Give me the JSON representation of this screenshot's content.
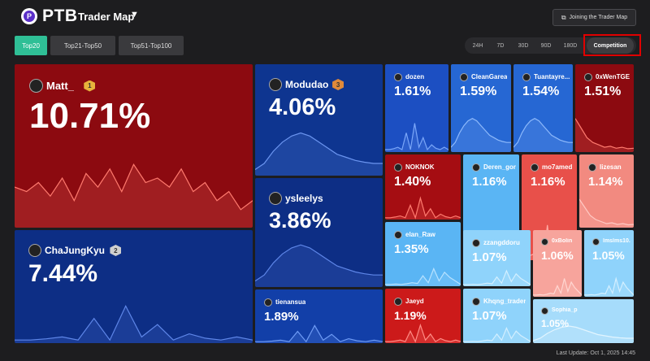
{
  "header": {
    "brand": "PTB",
    "title": "Trader Map",
    "join_label": "Joining the Trader Map"
  },
  "tabs": [
    {
      "label": "Top20",
      "active": true
    },
    {
      "label": "Top21-Top50",
      "active": false
    },
    {
      "label": "Top51-Top100",
      "active": false
    }
  ],
  "periods": [
    {
      "label": "24H",
      "active": false
    },
    {
      "label": "7D",
      "active": false
    },
    {
      "label": "30D",
      "active": false
    },
    {
      "label": "90D",
      "active": false
    },
    {
      "label": "180D",
      "active": false
    },
    {
      "label": "Competition",
      "active": true
    }
  ],
  "traders": [
    {
      "name": "Matt_",
      "pct": "10.71%",
      "rank": "1",
      "color": "#8c0a10",
      "line": "#ff7a6e"
    },
    {
      "name": "ChaJungKyu",
      "pct": "7.44%",
      "rank": "2",
      "color": "#0d2e85",
      "line": "#5e86e8"
    },
    {
      "name": "Modudao",
      "pct": "4.06%",
      "rank": "3",
      "color": "#0e3590",
      "line": "#6b95f0"
    },
    {
      "name": "ysleelys",
      "pct": "3.86%",
      "rank": "",
      "color": "#0d2e85",
      "line": "#5e86e8"
    },
    {
      "name": "tienansua",
      "pct": "1.89%",
      "rank": "",
      "color": "#123fa8",
      "line": "#6e9bf5"
    },
    {
      "name": "dozen",
      "pct": "1.61%",
      "rank": "",
      "color": "#1c4fc2",
      "line": "#7aa6f8"
    },
    {
      "name": "CleanGarea",
      "pct": "1.59%",
      "rank": "",
      "color": "#2667d3",
      "line": "#8db9fb"
    },
    {
      "name": "Tuantayre...",
      "pct": "1.54%",
      "rank": "",
      "color": "#2667d3",
      "line": "#8db9fb"
    },
    {
      "name": "0xWenTGE",
      "pct": "1.51%",
      "rank": "",
      "color": "#8c0a10",
      "line": "#ff7a6e"
    },
    {
      "name": "NOKNOK",
      "pct": "1.40%",
      "rank": "",
      "color": "#a50d12",
      "line": "#ff7a6e"
    },
    {
      "name": "Deren_gon...",
      "pct": "1.16%",
      "rank": "",
      "color": "#5ab5f4",
      "line": "#b7e2ff"
    },
    {
      "name": "mo7amed",
      "pct": "1.16%",
      "rank": "",
      "color": "#e8504a",
      "line": "#ffaaa3"
    },
    {
      "name": "lizesan",
      "pct": "1.14%",
      "rank": "",
      "color": "#f28a80",
      "line": "#ffc9c3"
    },
    {
      "name": "elan_Raw",
      "pct": "1.35%",
      "rank": "",
      "color": "#5ab5f4",
      "line": "#b7e2ff"
    },
    {
      "name": "zzangddoru",
      "pct": "1.07%",
      "rank": "",
      "color": "#8fd3fb",
      "line": "#d3efff"
    },
    {
      "name": "0xBolin",
      "pct": "1.06%",
      "rank": "",
      "color": "#f7a49c",
      "line": "#ffd6d1"
    },
    {
      "name": "lmslms10...",
      "pct": "1.05%",
      "rank": "",
      "color": "#8fd3fb",
      "line": "#d3efff"
    },
    {
      "name": "Jaeyd",
      "pct": "1.19%",
      "rank": "",
      "color": "#cc1a1a",
      "line": "#ff8c85"
    },
    {
      "name": "Khqng_trader",
      "pct": "1.07%",
      "rank": "",
      "color": "#8fd3fb",
      "line": "#d3efff"
    },
    {
      "name": "Sophia_p",
      "pct": "1.05%",
      "rank": "",
      "color": "#a6dcfb",
      "line": "#e2f5ff"
    }
  ],
  "footer": {
    "last_update": "Last Update: Oct 1, 2025 14:45"
  }
}
